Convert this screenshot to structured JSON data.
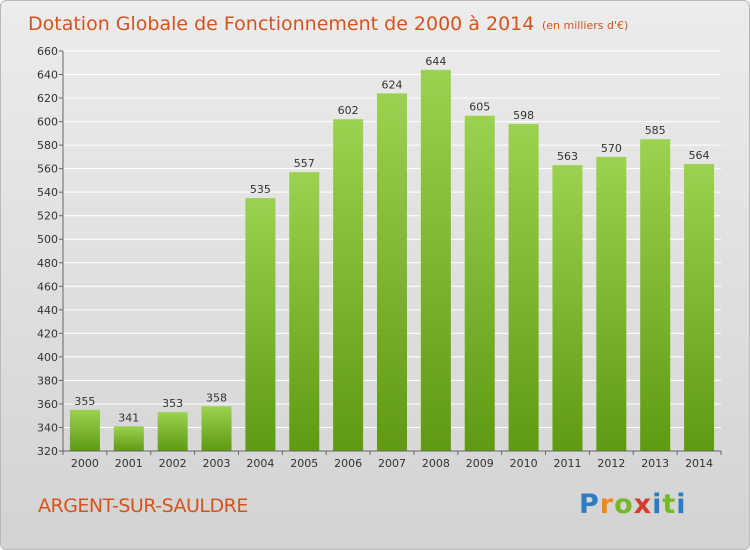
{
  "chart_data": {
    "type": "bar",
    "title": "Dotation Globale de Fonctionnement de 2000 à 2014",
    "unit_note": "(en milliers d'€)",
    "categories": [
      "2000",
      "2001",
      "2002",
      "2003",
      "2004",
      "2005",
      "2006",
      "2007",
      "2008",
      "2009",
      "2010",
      "2011",
      "2012",
      "2013",
      "2014"
    ],
    "values": [
      355,
      341,
      353,
      358,
      535,
      557,
      602,
      624,
      644,
      605,
      598,
      563,
      570,
      585,
      564
    ],
    "ylim": [
      320,
      660
    ],
    "ytick_step": 20,
    "grid": true,
    "bar_color_top": "#9bd24f",
    "bar_color_bottom": "#5f9a12"
  },
  "commune": "ARGENT-SUR-SAULDRE",
  "logo": {
    "letters": [
      "P",
      "r",
      "o",
      "x",
      "i",
      "t",
      "i"
    ]
  }
}
